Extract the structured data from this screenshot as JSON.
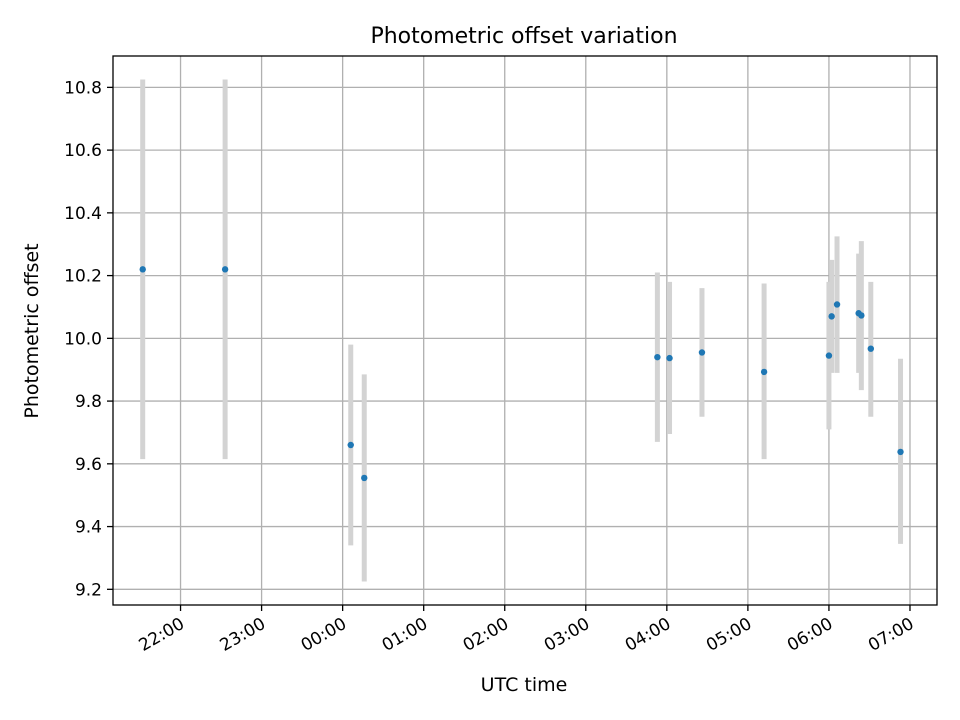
{
  "chart_data": {
    "type": "scatter",
    "title": "Photometric offset variation",
    "xlabel": "UTC time",
    "ylabel": "Photometric offset",
    "x_ticks": [
      "22:00",
      "23:00",
      "00:00",
      "01:00",
      "02:00",
      "03:00",
      "04:00",
      "05:00",
      "06:00",
      "07:00"
    ],
    "y_ticks": [
      "9.2",
      "9.4",
      "9.6",
      "9.8",
      "10.0",
      "10.2",
      "10.4",
      "10.6",
      "10.8"
    ],
    "xlim": [
      "21:10",
      "07:20"
    ],
    "ylim": [
      9.15,
      10.9
    ],
    "grid": true,
    "colors": {
      "point": "#1f77b4",
      "errorbar": "#d3d3d3"
    },
    "points": [
      {
        "x": "21:32",
        "y": 10.22,
        "ylow": 9.615,
        "yhigh": 10.825
      },
      {
        "x": "22:33",
        "y": 10.22,
        "ylow": 9.615,
        "yhigh": 10.825
      },
      {
        "x": "00:06",
        "y": 9.66,
        "ylow": 9.34,
        "yhigh": 9.98
      },
      {
        "x": "00:16",
        "y": 9.555,
        "ylow": 9.225,
        "yhigh": 9.885
      },
      {
        "x": "03:53",
        "y": 9.94,
        "ylow": 9.67,
        "yhigh": 10.21
      },
      {
        "x": "04:02",
        "y": 9.937,
        "ylow": 9.695,
        "yhigh": 10.18
      },
      {
        "x": "04:26",
        "y": 9.955,
        "ylow": 9.75,
        "yhigh": 10.16
      },
      {
        "x": "05:12",
        "y": 9.893,
        "ylow": 9.615,
        "yhigh": 10.175
      },
      {
        "x": "06:00",
        "y": 9.945,
        "ylow": 9.71,
        "yhigh": 10.18
      },
      {
        "x": "06:02",
        "y": 10.07,
        "ylow": 9.89,
        "yhigh": 10.25
      },
      {
        "x": "06:06",
        "y": 10.108,
        "ylow": 9.89,
        "yhigh": 10.325
      },
      {
        "x": "06:22",
        "y": 10.08,
        "ylow": 9.89,
        "yhigh": 10.27
      },
      {
        "x": "06:24",
        "y": 10.073,
        "ylow": 9.835,
        "yhigh": 10.31
      },
      {
        "x": "06:31",
        "y": 9.967,
        "ylow": 9.75,
        "yhigh": 10.18
      },
      {
        "x": "06:53",
        "y": 9.638,
        "ylow": 9.345,
        "yhigh": 9.935
      }
    ]
  }
}
